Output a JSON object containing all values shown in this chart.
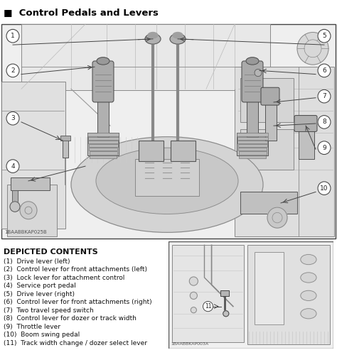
{
  "title": "■  Control Pedals and Levers",
  "title_fontsize": 9.5,
  "title_fontweight": "bold",
  "bg_color": "#ffffff",
  "depicted_header": "DEPICTED CONTENTS",
  "depicted_items": [
    "(1)  Drive lever (left)",
    "(2)  Control lever for front attachments (left)",
    "(3)  Lock lever for attachment control",
    "(4)  Service port pedal",
    "(5)  Drive lever (right)",
    "(6)  Control lever for front attachments (right)",
    "(7)  Two travel speed switch",
    "(8)  Control lever for dozer or track width",
    "(9)  Throttle lever",
    "(10)  Boom swing pedal",
    "(11)  Track width change / dozer select lever"
  ],
  "diagram_code_left": "1BAABBKAP025B",
  "diagram_code_right": "1BAABBKAP003A",
  "fig_width": 4.74,
  "fig_height": 4.93,
  "dpi": 100
}
